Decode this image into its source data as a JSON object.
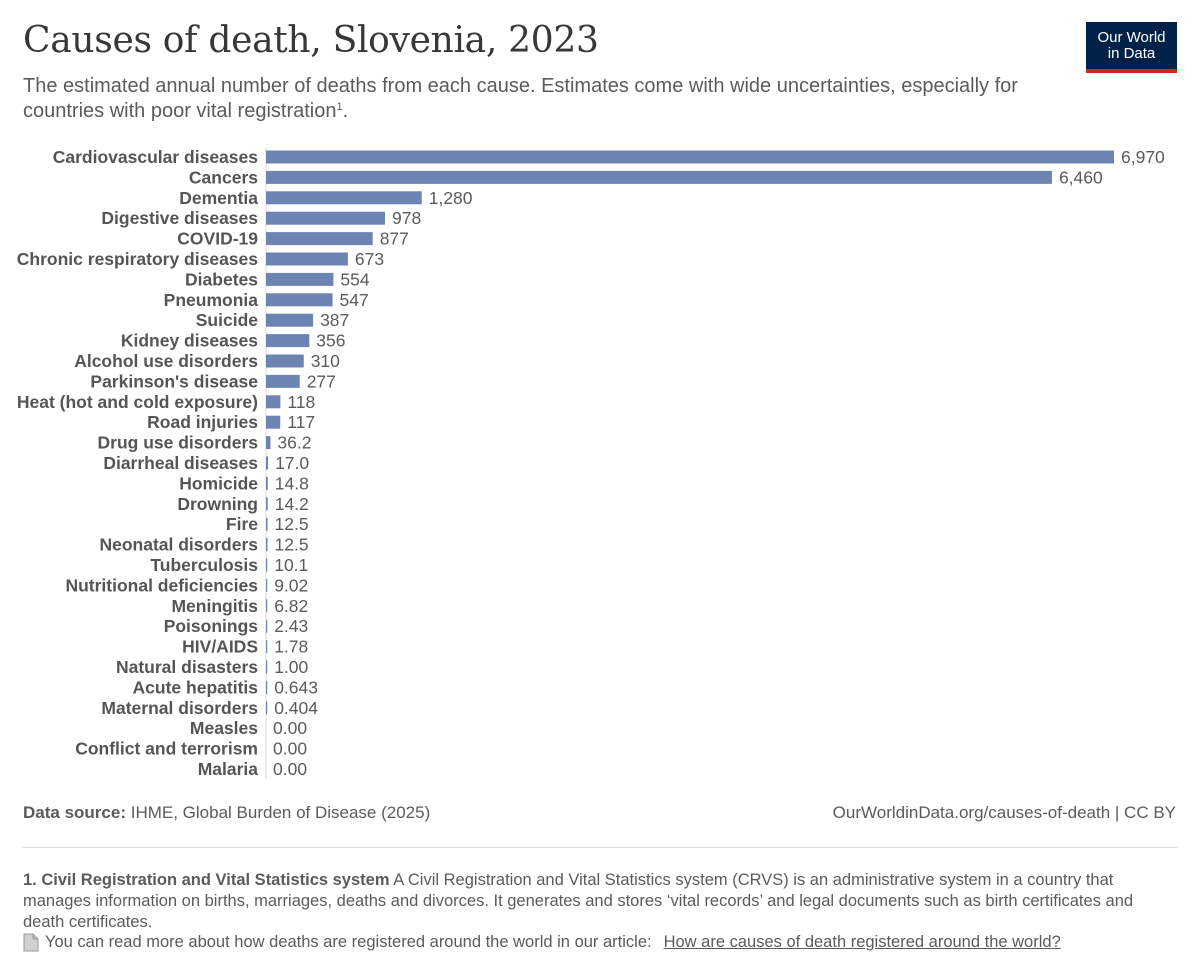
{
  "header": {
    "title": "Causes of death, Slovenia, 2023",
    "subtitle": "The estimated annual number of deaths from each cause. Estimates come with wide uncertainties, especially for countries with poor vital registration",
    "subtitle_ref": "1",
    "subtitle_end": "."
  },
  "logo": {
    "line1": "Our World",
    "line2": "in Data",
    "bg_color": "#002147",
    "accent_color": "#ce261e"
  },
  "chart_data": {
    "type": "bar",
    "orientation": "horizontal",
    "bar_color": "#6d84b2",
    "categories": [
      "Cardiovascular diseases",
      "Cancers",
      "Dementia",
      "Digestive diseases",
      "COVID-19",
      "Chronic respiratory diseases",
      "Diabetes",
      "Pneumonia",
      "Suicide",
      "Kidney diseases",
      "Alcohol use disorders",
      "Parkinson's disease",
      "Heat (hot and cold exposure)",
      "Road injuries",
      "Drug use disorders",
      "Diarrheal diseases",
      "Homicide",
      "Drowning",
      "Fire",
      "Neonatal disorders",
      "Tuberculosis",
      "Nutritional deficiencies",
      "Meningitis",
      "Poisonings",
      "HIV/AIDS",
      "Natural disasters",
      "Acute hepatitis",
      "Maternal disorders",
      "Measles",
      "Conflict and terrorism",
      "Malaria"
    ],
    "values": [
      6970,
      6460,
      1280,
      978,
      877,
      673,
      554,
      547,
      387,
      356,
      310,
      277,
      118,
      117,
      36.2,
      17.0,
      14.8,
      14.2,
      12.5,
      12.5,
      10.1,
      9.02,
      6.82,
      2.43,
      1.78,
      1.0,
      0.643,
      0.404,
      0.0,
      0.0,
      0.0
    ],
    "value_labels": [
      "6,970",
      "6,460",
      "1,280",
      "978",
      "877",
      "673",
      "554",
      "547",
      "387",
      "356",
      "310",
      "277",
      "118",
      "117",
      "36.2",
      "17.0",
      "14.8",
      "14.2",
      "12.5",
      "12.5",
      "10.1",
      "9.02",
      "6.82",
      "2.43",
      "1.78",
      "1.00",
      "0.643",
      "0.404",
      "0.00",
      "0.00",
      "0.00"
    ],
    "xlim": [
      0,
      6970
    ],
    "grid": false,
    "legend": "none"
  },
  "footer": {
    "source_label": "Data source:",
    "source_text": "IHME, Global Burden of Disease (2025)",
    "url": "OurWorldinData.org/causes-of-death",
    "license": "| CC BY"
  },
  "note": {
    "number": "1.",
    "heading": "Civil Registration and Vital Statistics system",
    "text": "A Civil Registration and Vital Statistics system (CRVS) is an administrative system in a country that manages information on births, marriages, deaths and divorces. It generates and stores ‘vital records’ and legal documents such as birth certificates and death certificates.",
    "article_intro": "You can read more about how deaths are registered around the world in our article:",
    "article_link": "How are causes of death registered around the world?"
  }
}
